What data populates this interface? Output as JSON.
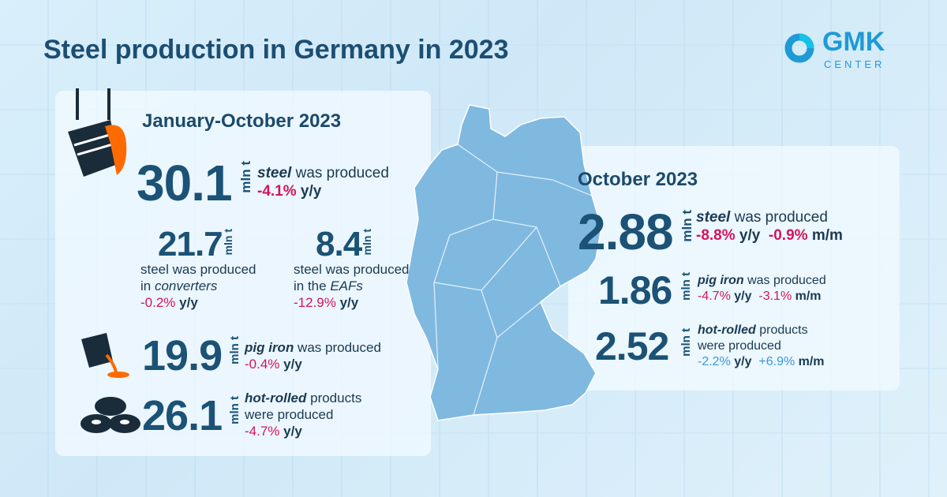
{
  "title": "Steel production in Germany in 2023",
  "logo": {
    "name": "GMK",
    "sub": "CENTER",
    "color": "#1e9ad6"
  },
  "colors": {
    "primary": "#1b5275",
    "negative": "#d4145a",
    "positive": "#3a98d6"
  },
  "unit": "mln t",
  "jan_oct": {
    "heading": "January-October 2023",
    "steel": {
      "value": "30.1",
      "label_em": "steel",
      "label": " was produced",
      "yy": "-4.1%",
      "yy_unit": " y/y"
    },
    "converters": {
      "value": "21.7",
      "line1": "steel was produced",
      "line2_pre": "in ",
      "line2_em": "converters",
      "yy": "-0.2%",
      "yy_unit": " y/y"
    },
    "eaf": {
      "value": "8.4",
      "line1": "steel was produced",
      "line2_pre": "in the ",
      "line2_em": "EAFs",
      "yy": "-12.9%",
      "yy_unit": " y/y"
    },
    "pig_iron": {
      "value": "19.9",
      "label_em": "pig iron",
      "label": " was produced",
      "yy": "-0.4%",
      "yy_unit": " y/y"
    },
    "hot_rolled": {
      "value": "26.1",
      "label_em": "hot-rolled",
      "label": " products",
      "line2": "were produced",
      "yy": "-4.7%",
      "yy_unit": " y/y"
    }
  },
  "october": {
    "heading": "October 2023",
    "steel": {
      "value": "2.88",
      "label_em": "steel",
      "label": " was produced",
      "yy": "-8.8%",
      "yy_unit": " y/y",
      "mm": "-0.9%",
      "mm_unit": " m/m"
    },
    "pig_iron": {
      "value": "1.86",
      "label_em": "pig iron",
      "label": " was produced",
      "yy": "-4.7%",
      "yy_unit": " y/y",
      "mm": "-3.1%",
      "mm_unit": " m/m"
    },
    "hot_rolled": {
      "value": "2.52",
      "label_em": "hot-rolled",
      "label": " products",
      "line2": "were produced",
      "yy": "-2.2%",
      "yy_unit": " y/y",
      "mm": "+6.9%",
      "mm_unit": " m/m"
    }
  }
}
